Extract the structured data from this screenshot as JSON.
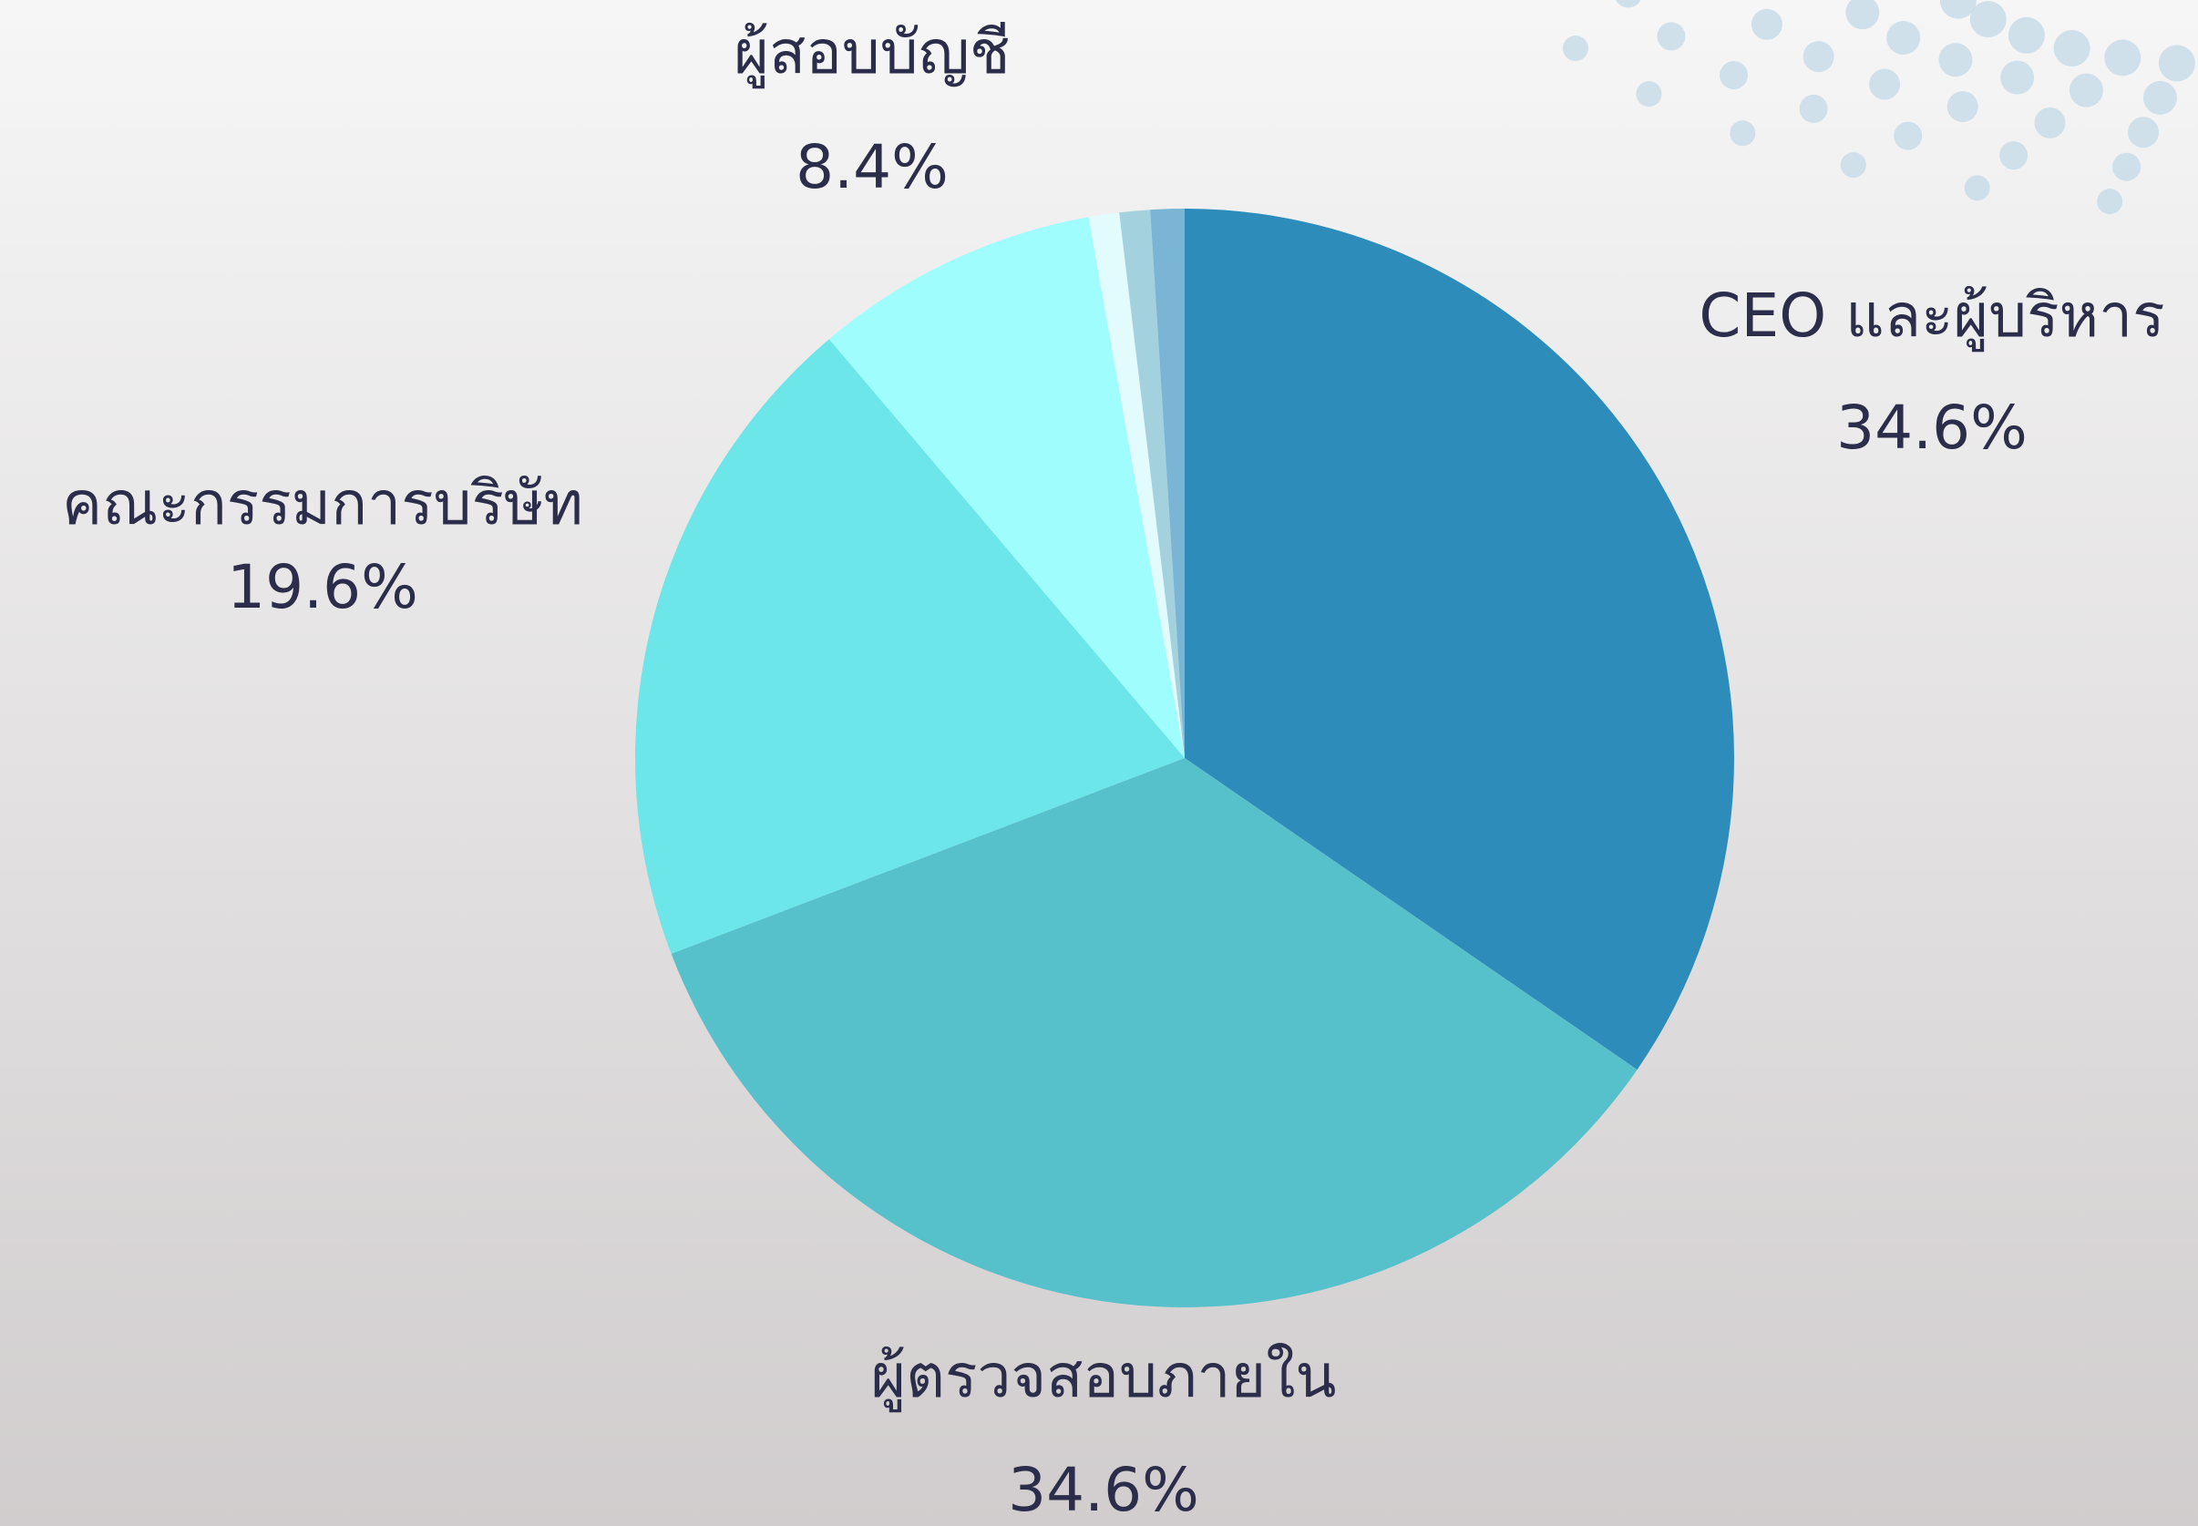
{
  "chart_data": {
    "type": "pie",
    "categories": [
      "CEO และผู้บริหาร",
      "ผู้ตรวจสอบภายใน",
      "คณะกรรมการบริษัท",
      "ผู้สอบบัญชี",
      null,
      null,
      null
    ],
    "values": [
      34.6,
      34.6,
      19.6,
      8.4,
      0.9,
      0.9,
      1.0
    ],
    "value_labels": [
      "34.6%",
      "34.6%",
      "19.6%",
      "8.4%",
      null,
      null,
      null
    ],
    "colors": [
      "#2e8cba",
      "#57c1cb",
      "#6ce6e9",
      "#a0fdfe",
      "#e2fbfd",
      "#a3d2de",
      "#7ab5d6"
    ]
  }
}
